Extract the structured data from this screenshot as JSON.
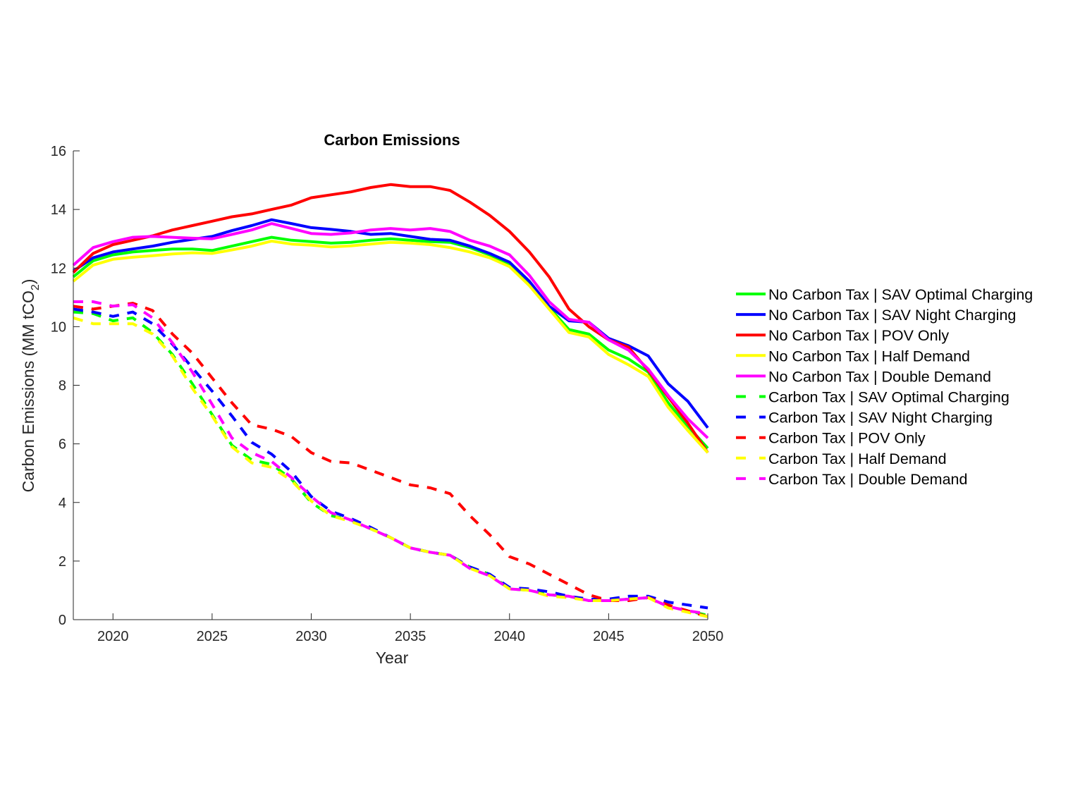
{
  "chart_data": {
    "type": "line",
    "title": "Carbon Emissions",
    "xlabel": "Year",
    "ylabel": "Carbon Emissions (MM tCO",
    "ylabel_subscript": "2",
    "ylabel_close": ")",
    "xlim": [
      2018,
      2050
    ],
    "ylim": [
      0,
      16
    ],
    "xticks": [
      2020,
      2025,
      2030,
      2035,
      2040,
      2045,
      2050
    ],
    "yticks": [
      0,
      2,
      4,
      6,
      8,
      10,
      12,
      14,
      16
    ],
    "grid": false,
    "legend_position": "right",
    "x": [
      2018,
      2019,
      2020,
      2021,
      2022,
      2023,
      2024,
      2025,
      2026,
      2027,
      2028,
      2029,
      2030,
      2031,
      2032,
      2033,
      2034,
      2035,
      2036,
      2037,
      2038,
      2039,
      2040,
      2041,
      2042,
      2043,
      2044,
      2045,
      2046,
      2047,
      2048,
      2049,
      2050
    ],
    "series": [
      {
        "name": "No Carbon Tax | SAV Optimal Charging",
        "color": "#00ff00",
        "style": "solid",
        "values": [
          11.7,
          12.25,
          12.45,
          12.55,
          12.6,
          12.65,
          12.65,
          12.6,
          12.75,
          12.9,
          13.05,
          12.95,
          12.9,
          12.85,
          12.88,
          12.95,
          13.0,
          12.95,
          12.9,
          12.88,
          12.7,
          12.45,
          12.1,
          11.5,
          10.65,
          9.9,
          9.75,
          9.2,
          8.9,
          8.45,
          7.4,
          6.6,
          5.85
        ]
      },
      {
        "name": "No Carbon Tax | SAV Night Charging",
        "color": "#0000ff",
        "style": "solid",
        "values": [
          11.9,
          12.35,
          12.55,
          12.65,
          12.75,
          12.88,
          12.98,
          13.08,
          13.28,
          13.45,
          13.65,
          13.52,
          13.38,
          13.32,
          13.25,
          13.15,
          13.18,
          13.08,
          12.98,
          12.95,
          12.75,
          12.5,
          12.2,
          11.55,
          10.7,
          10.2,
          10.15,
          9.6,
          9.35,
          9.0,
          8.05,
          7.45,
          6.55
        ]
      },
      {
        "name": "No Carbon Tax | POV Only",
        "color": "#ff0000",
        "style": "solid",
        "values": [
          11.85,
          12.5,
          12.8,
          12.95,
          13.1,
          13.3,
          13.45,
          13.6,
          13.75,
          13.85,
          14.0,
          14.15,
          14.4,
          14.5,
          14.6,
          14.75,
          14.85,
          14.78,
          14.78,
          14.65,
          14.25,
          13.8,
          13.25,
          12.55,
          11.7,
          10.6,
          10.0,
          9.55,
          9.3,
          8.5,
          7.6,
          6.7,
          5.7
        ]
      },
      {
        "name": "No Carbon Tax | Half Demand",
        "color": "#ffff00",
        "style": "solid",
        "values": [
          11.55,
          12.1,
          12.3,
          12.37,
          12.42,
          12.48,
          12.52,
          12.5,
          12.62,
          12.75,
          12.92,
          12.82,
          12.78,
          12.72,
          12.76,
          12.82,
          12.88,
          12.85,
          12.8,
          12.7,
          12.55,
          12.35,
          12.05,
          11.4,
          10.6,
          9.8,
          9.65,
          9.05,
          8.7,
          8.3,
          7.25,
          6.45,
          5.7
        ]
      },
      {
        "name": "No Carbon Tax | Double Demand",
        "color": "#ff00ff",
        "style": "solid",
        "values": [
          12.1,
          12.7,
          12.9,
          13.05,
          13.08,
          13.05,
          13.02,
          13.0,
          13.15,
          13.3,
          13.52,
          13.35,
          13.18,
          13.15,
          13.2,
          13.3,
          13.35,
          13.3,
          13.35,
          13.25,
          12.95,
          12.75,
          12.45,
          11.75,
          10.85,
          10.25,
          10.15,
          9.55,
          9.2,
          8.55,
          7.65,
          6.85,
          6.2
        ]
      },
      {
        "name": "Carbon Tax | SAV Optimal Charging",
        "color": "#00ff00",
        "style": "dashed",
        "values": [
          10.5,
          10.45,
          10.2,
          10.3,
          9.8,
          9.05,
          8.05,
          7.0,
          5.95,
          5.45,
          5.3,
          4.8,
          4.0,
          3.55,
          3.4,
          3.1,
          2.8,
          2.45,
          2.3,
          2.2,
          1.8,
          1.55,
          1.05,
          1.0,
          0.85,
          0.8,
          0.65,
          0.65,
          0.7,
          0.75,
          0.45,
          0.3,
          0.15
        ]
      },
      {
        "name": "Carbon Tax | SAV Night Charging",
        "color": "#0000ff",
        "style": "dashed",
        "values": [
          10.6,
          10.5,
          10.35,
          10.5,
          10.1,
          9.4,
          8.6,
          7.8,
          6.95,
          6.05,
          5.65,
          5.05,
          4.2,
          3.7,
          3.45,
          3.15,
          2.8,
          2.45,
          2.3,
          2.2,
          1.8,
          1.55,
          1.1,
          1.05,
          0.95,
          0.8,
          0.7,
          0.7,
          0.8,
          0.8,
          0.6,
          0.5,
          0.4
        ]
      },
      {
        "name": "Carbon Tax | POV Only",
        "color": "#ff0000",
        "style": "dashed",
        "values": [
          10.7,
          10.6,
          10.7,
          10.8,
          10.55,
          9.75,
          9.1,
          8.25,
          7.4,
          6.65,
          6.5,
          6.25,
          5.7,
          5.4,
          5.35,
          5.1,
          4.85,
          4.6,
          4.5,
          4.3,
          3.55,
          2.9,
          2.15,
          1.9,
          1.55,
          1.2,
          0.85,
          0.65,
          0.65,
          0.75,
          0.5,
          0.3,
          0.1
        ]
      },
      {
        "name": "Carbon Tax | Half Demand",
        "color": "#ffff00",
        "style": "dashed",
        "values": [
          10.3,
          10.1,
          10.1,
          10.1,
          9.75,
          9.0,
          7.9,
          6.95,
          5.9,
          5.35,
          5.2,
          4.75,
          4.05,
          3.55,
          3.35,
          3.1,
          2.8,
          2.45,
          2.3,
          2.2,
          1.75,
          1.5,
          1.05,
          1.0,
          0.8,
          0.75,
          0.65,
          0.65,
          0.7,
          0.75,
          0.4,
          0.25,
          0.1
        ]
      },
      {
        "name": "Carbon Tax | Double Demand",
        "color": "#ff00ff",
        "style": "dashed",
        "values": [
          10.85,
          10.85,
          10.7,
          10.75,
          10.3,
          9.45,
          8.45,
          7.35,
          6.2,
          5.7,
          5.4,
          4.85,
          4.2,
          3.65,
          3.4,
          3.1,
          2.8,
          2.45,
          2.3,
          2.2,
          1.75,
          1.5,
          1.05,
          1.0,
          0.85,
          0.8,
          0.65,
          0.65,
          0.7,
          0.75,
          0.45,
          0.3,
          0.2
        ]
      }
    ]
  }
}
